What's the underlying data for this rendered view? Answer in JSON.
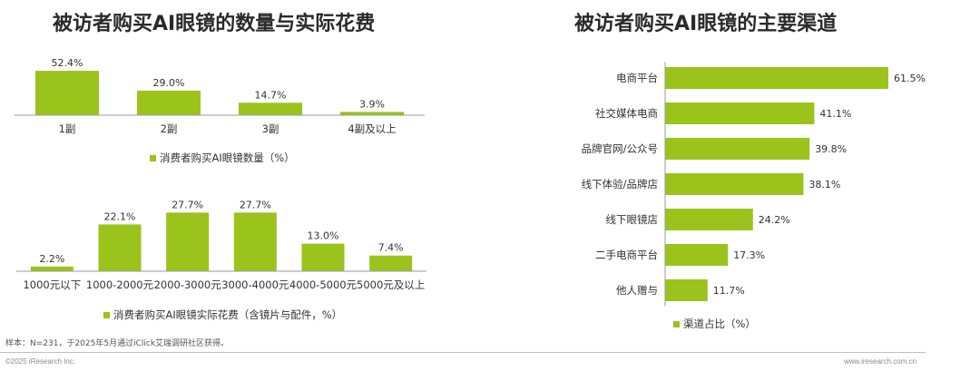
{
  "colors": {
    "bar": "#9ac31c",
    "axis": "#9a9a9a",
    "text": "#333333"
  },
  "left_title": "被访者购买AI眼镜的数量与实际花费",
  "right_title": "被访者购买AI眼镜的主要渠道",
  "note": "样本：N=231，于2025年5月通过iClick艾瑞调研社区获得。",
  "copyright": "©2025 iResearch Inc.",
  "website": "www.iresearch.com.cn",
  "chart_data": [
    {
      "type": "bar",
      "title": "",
      "categories": [
        "1副",
        "2副",
        "3副",
        "4副及以上"
      ],
      "series": [
        {
          "name": "消费者购买AI眼镜数量（%）",
          "values": [
            52.4,
            29.0,
            14.7,
            3.9
          ]
        }
      ],
      "value_labels": [
        "52.4%",
        "29.0%",
        "14.7%",
        "3.9%"
      ],
      "ylim": [
        0,
        60
      ],
      "legend": "bottom"
    },
    {
      "type": "bar",
      "title": "",
      "categories": [
        "1000元以下",
        "1000-2000元",
        "2000-3000元",
        "3000-4000元",
        "4000-5000元",
        "5000元及以上"
      ],
      "series": [
        {
          "name": "消费者购买AI眼镜实际花费（含镜片与配件，%）",
          "values": [
            2.2,
            22.1,
            27.7,
            27.7,
            13.0,
            7.4
          ]
        }
      ],
      "value_labels": [
        "2.2%",
        "22.1%",
        "27.7%",
        "27.7%",
        "13.0%",
        "7.4%"
      ],
      "ylim": [
        0,
        30
      ],
      "legend": "bottom"
    },
    {
      "type": "bar",
      "orientation": "horizontal",
      "title": "",
      "categories": [
        "电商平台",
        "社交媒体电商",
        "品牌官网/公众号",
        "线下体验/品牌店",
        "线下眼镜店",
        "二手电商平台",
        "他人赠与"
      ],
      "series": [
        {
          "name": "渠道占比（%）",
          "values": [
            61.5,
            41.1,
            39.8,
            38.1,
            24.2,
            17.3,
            11.7
          ]
        }
      ],
      "value_labels": [
        "61.5%",
        "41.1%",
        "39.8%",
        "38.1%",
        "24.2%",
        "17.3%",
        "11.7%"
      ],
      "xlim": [
        0,
        65
      ],
      "legend": "bottom"
    }
  ]
}
